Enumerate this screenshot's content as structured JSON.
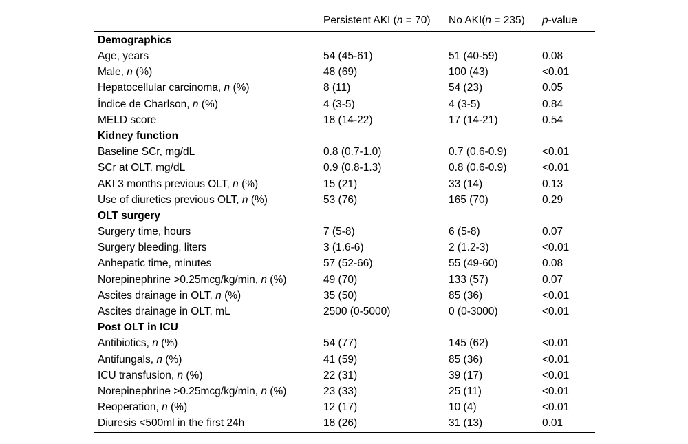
{
  "colors": {
    "background": "#ffffff",
    "text": "#000000",
    "rule": "#000000"
  },
  "table": {
    "columns": [
      {
        "key": "label",
        "label": ""
      },
      {
        "key": "persistent_aki",
        "label": "Persistent AKI (n = 70)"
      },
      {
        "key": "no_aki",
        "label": "No AKI(n = 235)"
      },
      {
        "key": "p_value",
        "label": "p-value"
      }
    ],
    "sections": [
      {
        "title": "Demographics",
        "rows": [
          {
            "label": "Age, years",
            "persistent_aki": "54 (45-61)",
            "no_aki": "51 (40-59)",
            "p_value": "0.08"
          },
          {
            "label": "Male, n (%)",
            "persistent_aki": "48 (69)",
            "no_aki": "100 (43)",
            "p_value": "<0.01"
          },
          {
            "label": "Hepatocellular carcinoma, n (%)",
            "persistent_aki": "8 (11)",
            "no_aki": "54 (23)",
            "p_value": "0.05"
          },
          {
            "label": "Índice de Charlson, n (%)",
            "persistent_aki": "4 (3-5)",
            "no_aki": "4 (3-5)",
            "p_value": "0.84"
          },
          {
            "label": "MELD score",
            "persistent_aki": "18 (14-22)",
            "no_aki": "17 (14-21)",
            "p_value": "0.54"
          }
        ]
      },
      {
        "title": "Kidney function",
        "rows": [
          {
            "label": "Baseline SCr, mg/dL",
            "persistent_aki": "0.8 (0.7-1.0)",
            "no_aki": "0.7 (0.6-0.9)",
            "p_value": "<0.01"
          },
          {
            "label": "SCr at OLT, mg/dL",
            "persistent_aki": "0.9 (0.8-1.3)",
            "no_aki": "0.8 (0.6-0.9)",
            "p_value": "<0.01"
          },
          {
            "label": "AKI 3 months previous OLT, n (%)",
            "persistent_aki": "15 (21)",
            "no_aki": "33 (14)",
            "p_value": "0.13"
          },
          {
            "label": "Use of diuretics previous OLT, n (%)",
            "persistent_aki": "53 (76)",
            "no_aki": "165 (70)",
            "p_value": "0.29"
          }
        ]
      },
      {
        "title": "OLT surgery",
        "rows": [
          {
            "label": "Surgery time, hours",
            "persistent_aki": "7 (5-8)",
            "no_aki": "6 (5-8)",
            "p_value": "0.07"
          },
          {
            "label": "Surgery bleeding, liters",
            "persistent_aki": "3 (1.6-6)",
            "no_aki": "2 (1.2-3)",
            "p_value": "<0.01"
          },
          {
            "label": "Anhepatic time, minutes",
            "persistent_aki": "57 (52-66)",
            "no_aki": "55 (49-60)",
            "p_value": "0.08"
          },
          {
            "label": "Norepinephrine >0.25mcg/kg/min, n (%)",
            "persistent_aki": "49 (70)",
            "no_aki": "133 (57)",
            "p_value": "0.07"
          },
          {
            "label": "Ascites drainage in OLT, n (%)",
            "persistent_aki": "35 (50)",
            "no_aki": "85 (36)",
            "p_value": "<0.01"
          },
          {
            "label": "Ascites drainage in OLT, mL",
            "persistent_aki": "2500 (0-5000)",
            "no_aki": "0 (0-3000)",
            "p_value": "<0.01"
          }
        ]
      },
      {
        "title": "Post OLT in ICU",
        "rows": [
          {
            "label": "Antibiotics, n (%)",
            "persistent_aki": "54 (77)",
            "no_aki": "145 (62)",
            "p_value": "<0.01"
          },
          {
            "label": "Antifungals, n (%)",
            "persistent_aki": "41 (59)",
            "no_aki": "85 (36)",
            "p_value": "<0.01"
          },
          {
            "label": "ICU transfusion, n (%)",
            "persistent_aki": "22 (31)",
            "no_aki": "39 (17)",
            "p_value": "<0.01"
          },
          {
            "label": "Norepinephrine >0.25mcg/kg/min, n (%)",
            "persistent_aki": "23 (33)",
            "no_aki": "25 (11)",
            "p_value": "<0.01"
          },
          {
            "label": "Reoperation, n (%)",
            "persistent_aki": "12 (17)",
            "no_aki": "10 (4)",
            "p_value": "<0.01"
          },
          {
            "label": "Diuresis <500ml in the first 24h",
            "persistent_aki": "18 (26)",
            "no_aki": "31 (13)",
            "p_value": "0.01"
          }
        ]
      }
    ]
  }
}
